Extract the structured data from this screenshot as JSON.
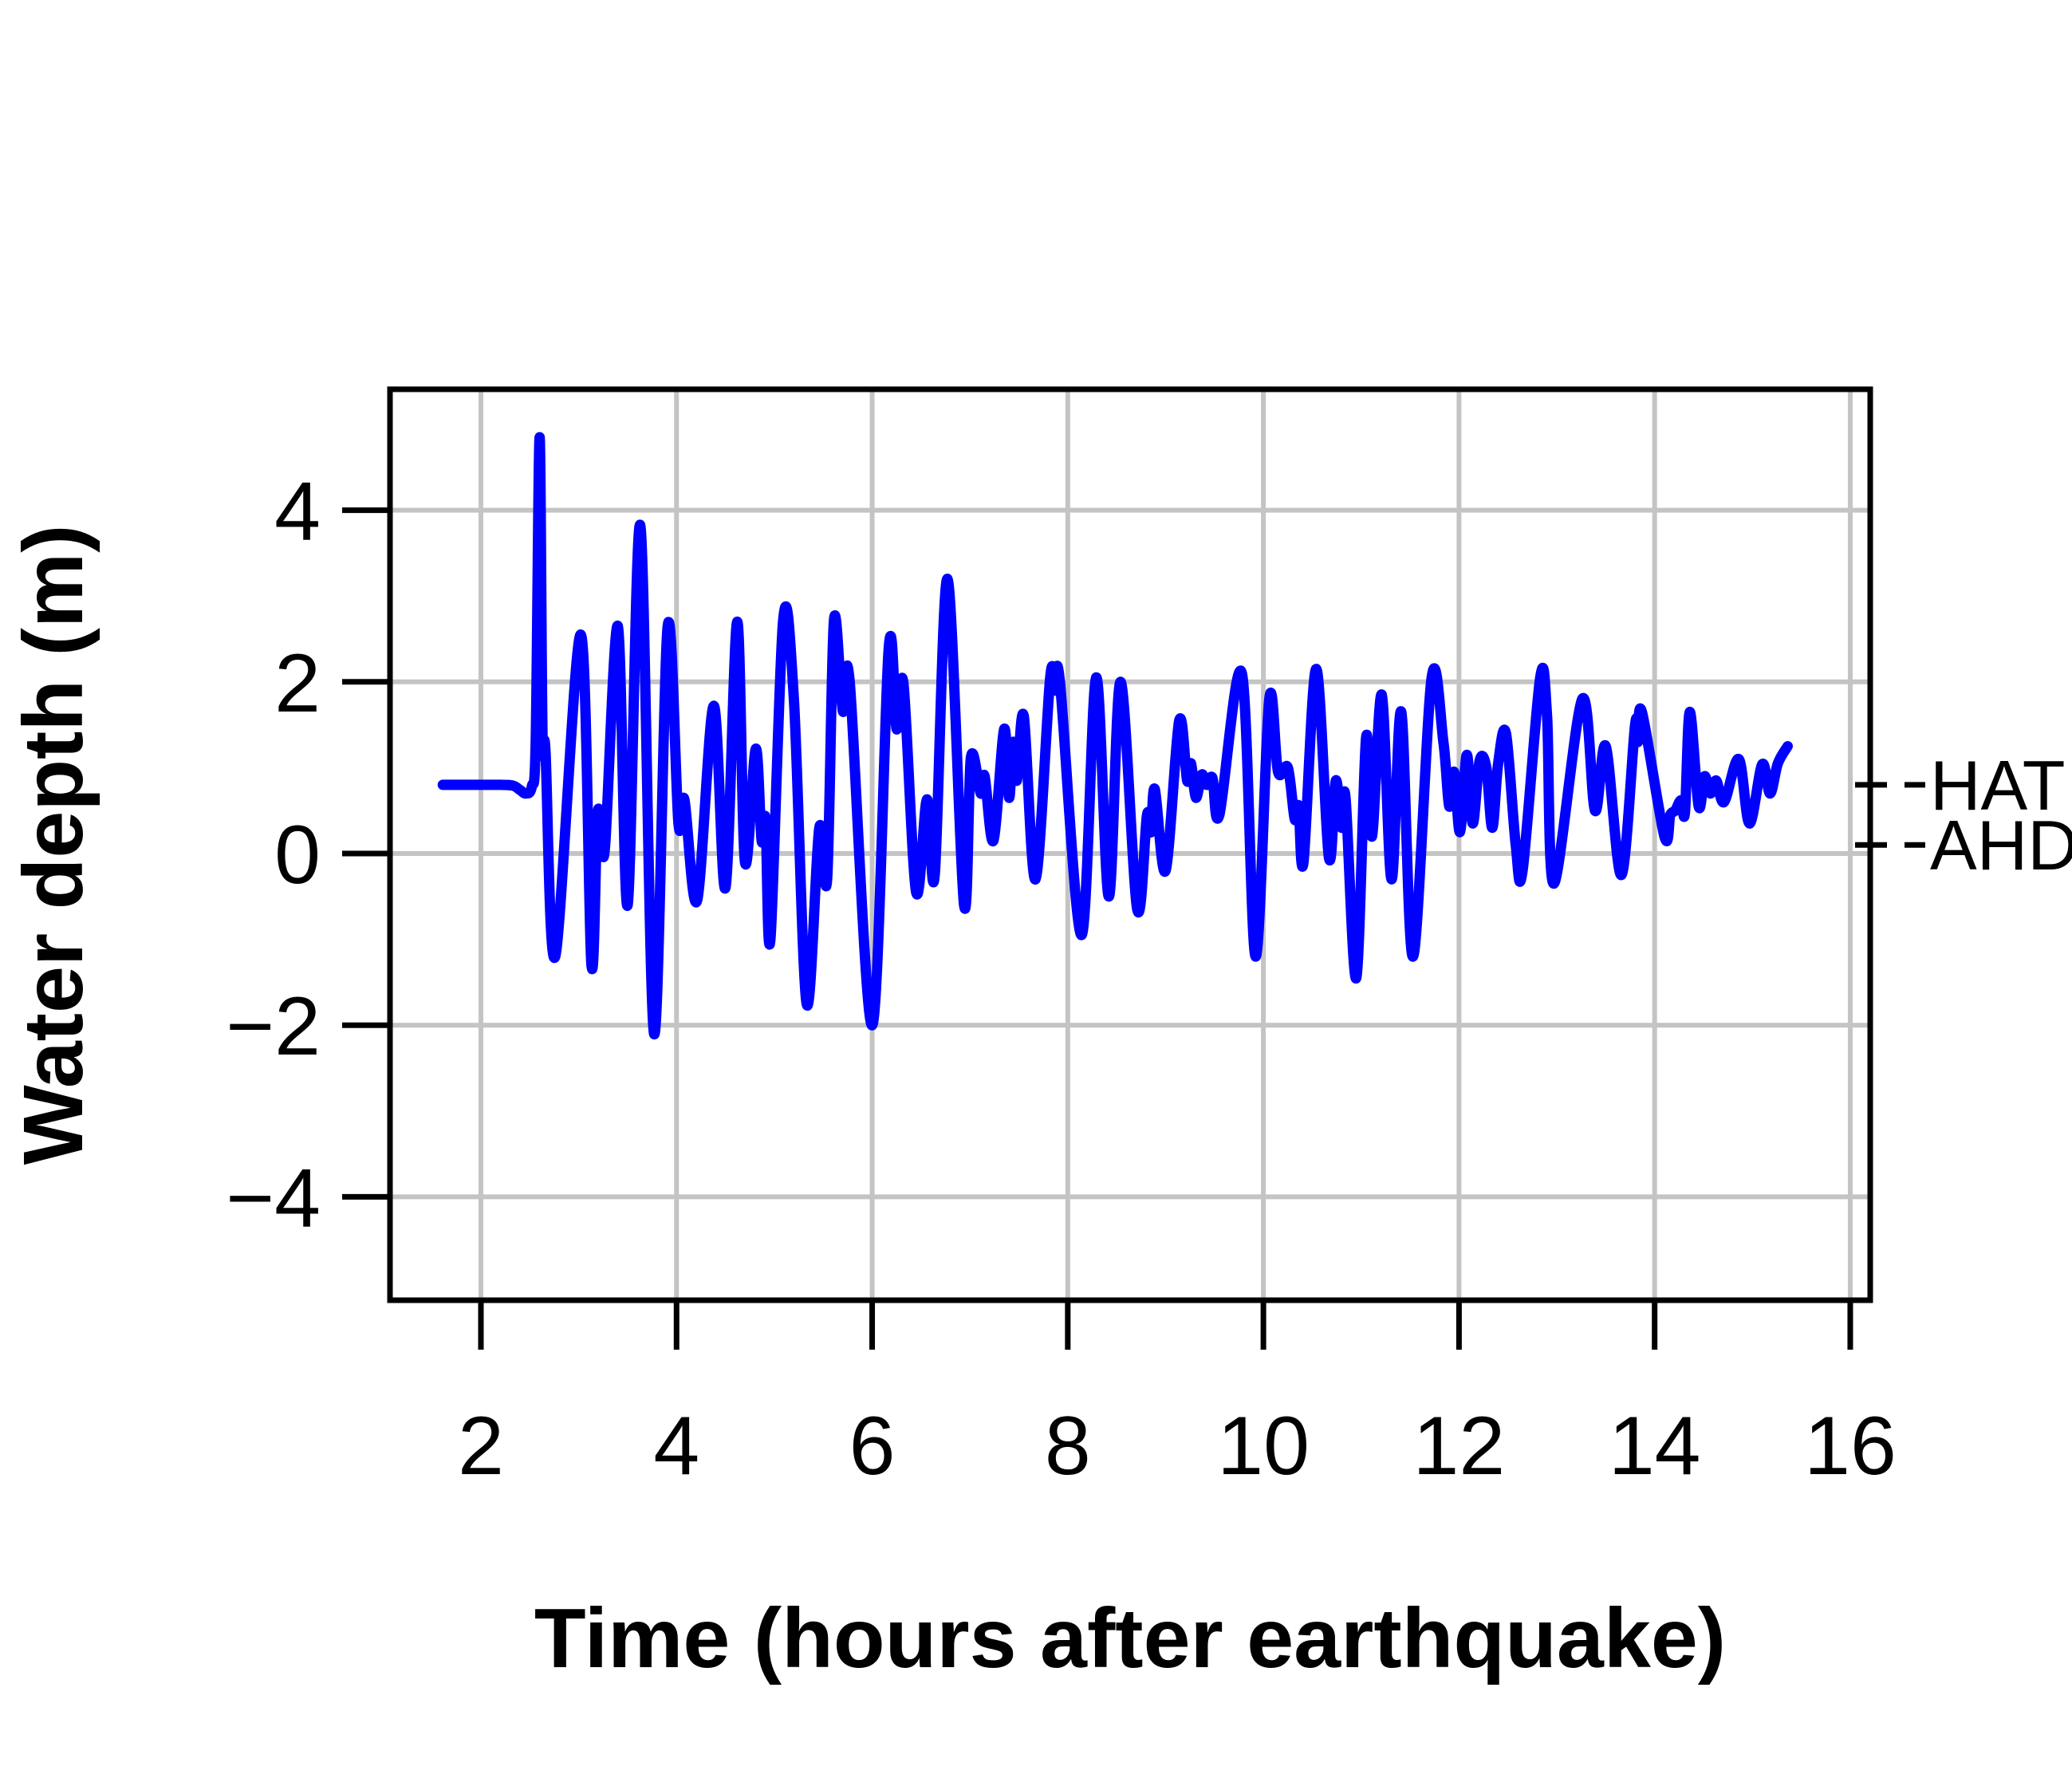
{
  "figure": {
    "background": "#FFFFFF",
    "line_color": "#0000FF",
    "grid_color": "#C4C4C4",
    "axis_color": "#000000",
    "text_color": "#000000"
  },
  "chart_data": {
    "type": "line",
    "title": "",
    "xlabel": "Time (hours after earthquake)",
    "ylabel": "Water depth (m)",
    "xlim": [
      1.07,
      16.2
    ],
    "ylim": [
      -5.2,
      5.41
    ],
    "x_ticks": [
      2,
      4,
      6,
      8,
      10,
      12,
      14,
      16
    ],
    "y_ticks": [
      -4,
      -2,
      0,
      2,
      4
    ],
    "grid": true,
    "legend": "none",
    "annotations": [
      {
        "label": "HAT",
        "y": 0.8
      },
      {
        "label": "AHD",
        "y": 0.1
      }
    ],
    "series": [
      {
        "name": "water-depth",
        "color": "#0000FF",
        "x": [
          1.61,
          1.9,
          2.2,
          2.33,
          2.4,
          2.46,
          2.52,
          2.56,
          2.6,
          2.63,
          2.66,
          2.76,
          3.02,
          3.13,
          3.19,
          3.23,
          3.27,
          3.4,
          3.5,
          3.63,
          3.77,
          3.91,
          4.02,
          4.08,
          4.21,
          4.38,
          4.5,
          4.62,
          4.7,
          4.81,
          4.87,
          4.91,
          4.96,
          5.09,
          5.2,
          5.33,
          5.46,
          5.54,
          5.61,
          5.7,
          5.77,
          6.0,
          6.17,
          6.25,
          6.32,
          6.45,
          6.56,
          6.64,
          6.77,
          6.94,
          7.01,
          7.11,
          7.15,
          7.24,
          7.35,
          7.4,
          7.44,
          7.48,
          7.55,
          7.67,
          7.82,
          7.87,
          7.92,
          8.14,
          8.29,
          8.42,
          8.54,
          8.71,
          8.81,
          8.85,
          8.89,
          9.0,
          9.14,
          9.22,
          9.26,
          9.31,
          9.37,
          9.42,
          9.48,
          9.55,
          9.78,
          9.92,
          10.06,
          10.15,
          10.25,
          10.32,
          10.36,
          10.41,
          10.54,
          10.67,
          10.74,
          10.8,
          10.84,
          10.95,
          11.05,
          11.11,
          11.21,
          11.31,
          11.41,
          11.53,
          11.72,
          11.84,
          11.9,
          11.95,
          12.01,
          12.08,
          12.14,
          12.21,
          12.28,
          12.34,
          12.4,
          12.48,
          12.58,
          12.65,
          12.83,
          12.9,
          12.97,
          13.26,
          13.39,
          13.5,
          13.66,
          13.8,
          13.83,
          13.87,
          14.1,
          14.16,
          14.21,
          14.27,
          14.31,
          14.36,
          14.45,
          14.51,
          14.57,
          14.63,
          14.71,
          14.86,
          14.97,
          15.1,
          15.18,
          15.26,
          15.36
        ],
        "y": [
          0.8,
          0.8,
          0.8,
          0.79,
          0.74,
          0.7,
          0.78,
          1.3,
          4.85,
          1.35,
          1.2,
          -1.2,
          2.55,
          -1.3,
          0.42,
          0.3,
          0.1,
          2.65,
          -0.6,
          3.82,
          -2.1,
          2.65,
          0.35,
          0.63,
          -0.55,
          1.72,
          -0.4,
          2.7,
          -0.1,
          1.22,
          0.15,
          0.4,
          -1.0,
          2.72,
          1.8,
          -1.75,
          0.3,
          -0.3,
          2.72,
          1.66,
          2.0,
          -2.0,
          2.4,
          1.45,
          1.98,
          -0.45,
          0.63,
          -0.25,
          3.2,
          -0.6,
          1.12,
          0.7,
          0.9,
          0.15,
          1.45,
          0.65,
          1.3,
          0.85,
          1.6,
          -0.3,
          2.05,
          1.9,
          2.0,
          -0.95,
          2.05,
          -0.5,
          2.0,
          -0.65,
          0.45,
          0.25,
          0.75,
          -0.2,
          1.55,
          0.85,
          1.05,
          0.65,
          0.92,
          0.8,
          0.88,
          0.45,
          2.1,
          -1.2,
          1.8,
          0.95,
          1.0,
          0.4,
          0.55,
          -0.1,
          2.15,
          -0.05,
          0.85,
          0.3,
          0.65,
          -1.45,
          1.35,
          0.2,
          1.85,
          -0.3,
          1.65,
          -1.2,
          2.05,
          1.3,
          0.55,
          0.95,
          0.25,
          1.15,
          0.35,
          1.08,
          1.0,
          0.3,
          1.05,
          1.4,
          0.1,
          -0.2,
          2.05,
          1.6,
          -0.35,
          1.8,
          0.5,
          1.25,
          -0.25,
          1.5,
          1.3,
          1.65,
          0.2,
          0.45,
          0.5,
          0.62,
          0.48,
          1.65,
          0.55,
          0.9,
          0.7,
          0.85,
          0.6,
          1.1,
          0.35,
          1.04,
          0.7,
          1.05,
          1.25
        ]
      }
    ]
  }
}
